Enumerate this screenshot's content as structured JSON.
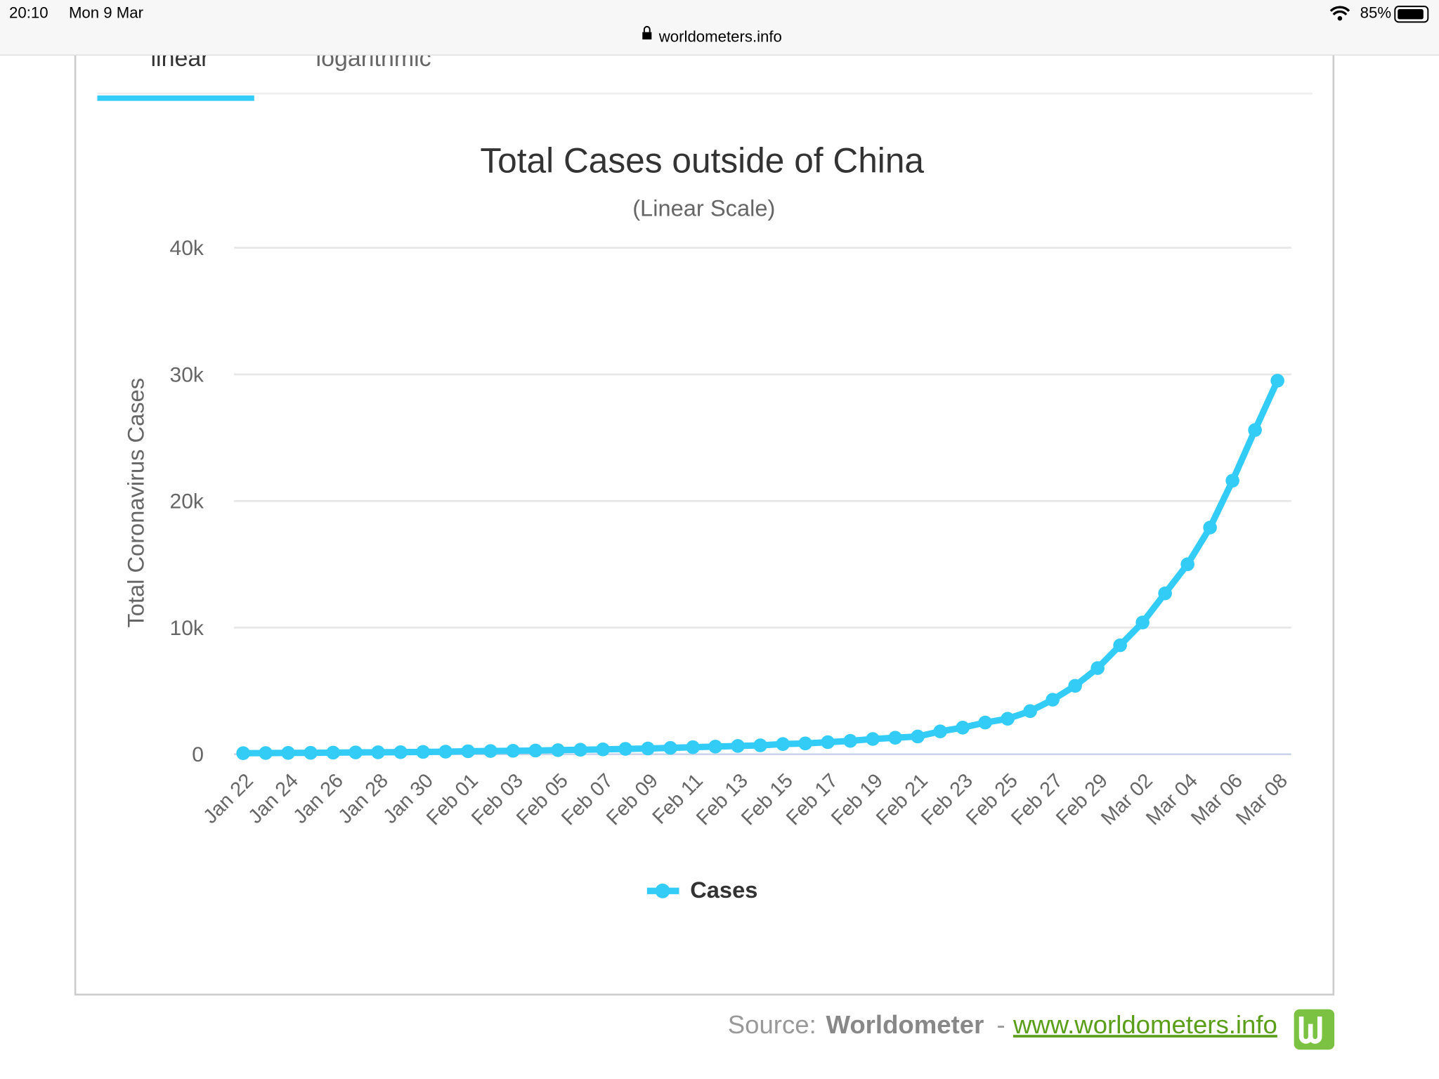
{
  "status_bar": {
    "time": "20:10",
    "date": "Mon 9 Mar",
    "battery": "85%"
  },
  "address_bar": {
    "url": "worldometers.info"
  },
  "tabs": [
    "linear",
    "logarithmic"
  ],
  "chart_data": {
    "type": "line",
    "title": "Total Cases outside of China",
    "subtitle": "(Linear Scale)",
    "y_label": "Total Coronavirus Cases",
    "categories": [
      "Jan 22",
      null,
      "Jan 24",
      null,
      "Jan 26",
      null,
      "Jan 28",
      null,
      "Jan 30",
      null,
      "Feb 01",
      null,
      "Feb 03",
      null,
      "Feb 05",
      null,
      "Feb 07",
      null,
      "Feb 09",
      null,
      "Feb 11",
      null,
      "Feb 13",
      null,
      "Feb 15",
      null,
      "Feb 17",
      null,
      "Feb 19",
      null,
      "Feb 21",
      null,
      "Feb 23",
      null,
      "Feb 25",
      null,
      "Feb 27",
      null,
      "Feb 29",
      null,
      "Mar 02",
      null,
      "Mar 04",
      null,
      "Mar 06",
      null,
      "Mar 08"
    ],
    "series": [
      {
        "name": "Cases",
        "color": "#33ccf7",
        "values": [
          80,
          90,
          100,
          110,
          120,
          140,
          150,
          160,
          180,
          200,
          230,
          250,
          270,
          290,
          320,
          350,
          380,
          420,
          450,
          500,
          550,
          600,
          650,
          700,
          800,
          850,
          950,
          1050,
          1200,
          1300,
          1400,
          1800,
          2100,
          2500,
          2800,
          3400,
          4300,
          5400,
          6800,
          8600,
          10400,
          12700,
          15000,
          17900,
          21600,
          25600,
          29500
        ]
      }
    ],
    "ylim": [
      0,
      40000
    ],
    "yticks": [
      0,
      {
        "value": 10000,
        "label": "10k"
      },
      {
        "value": 20000,
        "label": "20k"
      },
      {
        "value": 30000,
        "label": "30k"
      },
      {
        "value": 40000,
        "label": "40k"
      }
    ],
    "grid": true,
    "legend": "bottom"
  },
  "source": {
    "prefix": "Source:",
    "name": "Worldometer",
    "separator": "-",
    "link": "www.worldometers.info"
  }
}
